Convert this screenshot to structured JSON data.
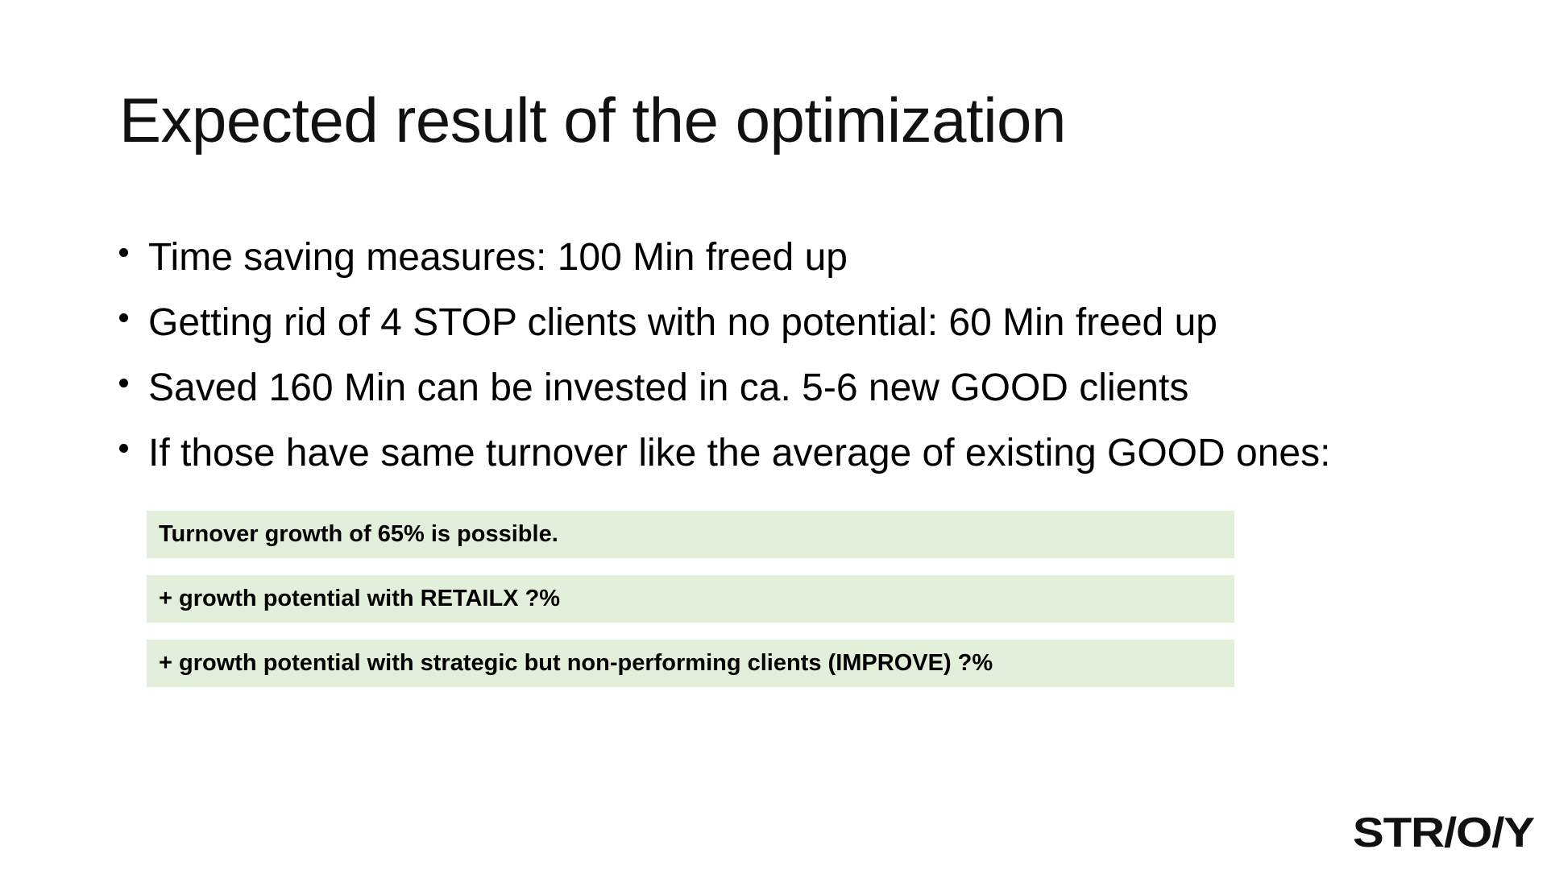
{
  "slide": {
    "title": "Expected result of the optimization",
    "bullets": [
      {
        "text": "Time saving measures: 100 Min freed up"
      },
      {
        "text": "Getting rid of 4 STOP clients with no potential: 60 Min freed up"
      },
      {
        "text": "Saved 160 Min can be invested in ca. 5-6 new GOOD clients"
      },
      {
        "text": "If those have same turnover like the average of existing GOOD ones:"
      }
    ],
    "boxes": [
      {
        "text": "Turnover growth of 65% is possible."
      },
      {
        "text": "+ growth potential with RETAILX ?%"
      },
      {
        "text": "+ growth potential with strategic but non-performing clients (IMPROVE) ?%"
      }
    ],
    "logo": "STR/O/Y"
  },
  "colors": {
    "box_background": "#e2efda",
    "text": "#000000",
    "background": "#ffffff"
  }
}
